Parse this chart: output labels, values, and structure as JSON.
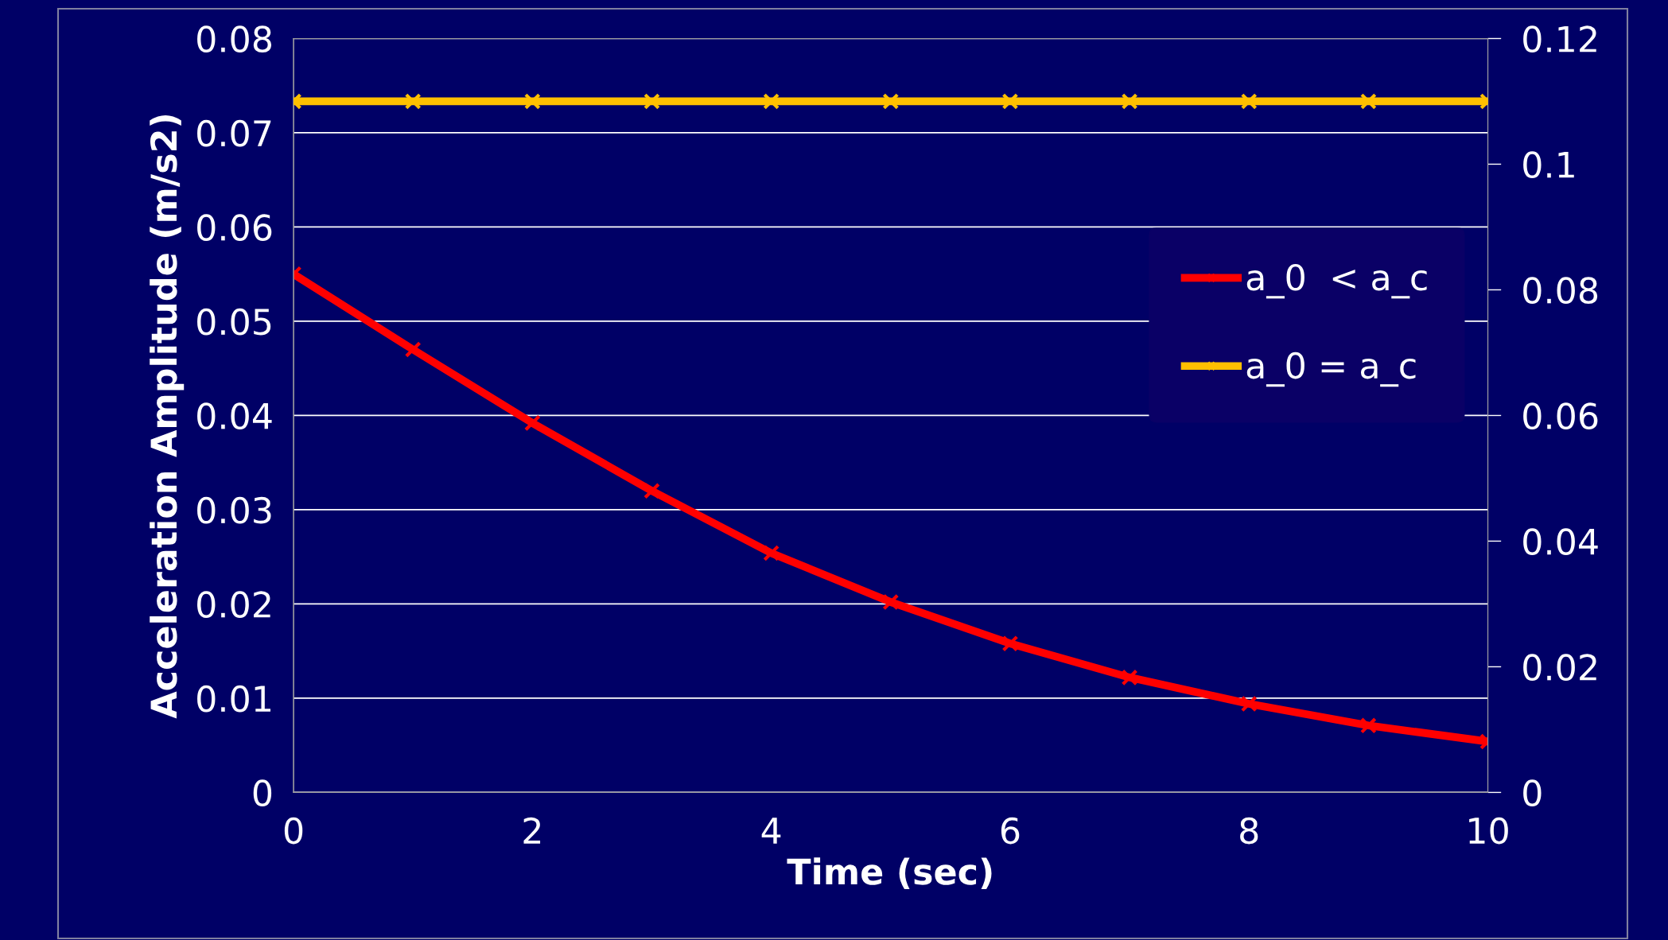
{
  "chart_data": {
    "type": "line",
    "xlabel": "Time (sec)",
    "ylabel": "Acceleration Amplitude (m/s2)",
    "x": [
      0,
      1,
      2,
      3,
      4,
      5,
      6,
      7,
      8,
      9,
      10
    ],
    "series": [
      {
        "name": "a_0  < a_c",
        "color": "#ff0000",
        "values": [
          0.055,
          0.047,
          0.0392,
          0.032,
          0.0254,
          0.0202,
          0.0158,
          0.0122,
          0.0094,
          0.0071,
          0.0054
        ]
      },
      {
        "name": "a_0 = a_c",
        "color": "#ffc000",
        "axis": "y2",
        "values": [
          0.11,
          0.11,
          0.11,
          0.11,
          0.11,
          0.11,
          0.11,
          0.11,
          0.11,
          0.11,
          0.11
        ]
      }
    ],
    "xlim": [
      0,
      10
    ],
    "xticks": [
      0,
      2,
      4,
      6,
      8,
      10
    ],
    "ylim": [
      0,
      0.08
    ],
    "yticks": [
      0,
      0.01,
      0.02,
      0.03,
      0.04,
      0.05,
      0.06,
      0.07,
      0.08
    ],
    "y2lim": [
      0,
      0.12
    ],
    "y2ticks": [
      0,
      0.02,
      0.04,
      0.06,
      0.08,
      0.1,
      0.12
    ],
    "grid": "y",
    "legend": "right",
    "marker": "cross",
    "line_style": "solid"
  }
}
